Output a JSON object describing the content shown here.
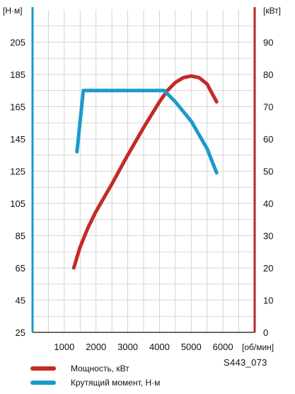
{
  "chart_data": {
    "type": "line",
    "reference_code": "S443_073",
    "left_axis": {
      "unit": "[Н·м]",
      "ticks": [
        25,
        45,
        65,
        85,
        105,
        125,
        145,
        165,
        185,
        205
      ],
      "range": [
        25,
        225
      ],
      "color": "#1a9ac9"
    },
    "right_axis": {
      "unit": "[кВт]",
      "ticks": [
        0,
        10,
        20,
        30,
        40,
        50,
        60,
        70,
        80,
        90
      ],
      "range": [
        0,
        100
      ],
      "color": "#b52a24"
    },
    "x_axis": {
      "unit": "[об/мин]",
      "ticks": [
        1000,
        2000,
        3000,
        4000,
        5000,
        6000
      ],
      "range": [
        0,
        7000
      ]
    },
    "grid": true,
    "series": [
      {
        "name": "Мощность, кВт",
        "axis": "right",
        "color": "#c42a26",
        "x": [
          1300,
          1500,
          1750,
          2000,
          2500,
          3000,
          3500,
          4000,
          4250,
          4500,
          4750,
          5000,
          5250,
          5500,
          5800
        ],
        "y": [
          20,
          26.5,
          32.5,
          37.5,
          46,
          55,
          63.5,
          71.5,
          75,
          77.5,
          79,
          79.5,
          79,
          77,
          71.5
        ]
      },
      {
        "name": "Крутящий момент, Н·м",
        "axis": "left",
        "color": "#1a9ac9",
        "x": [
          1400,
          1600,
          2000,
          3000,
          4000,
          4150,
          4500,
          5000,
          5500,
          5800
        ],
        "y": [
          137,
          175,
          175,
          175,
          175,
          175,
          168,
          156,
          139,
          124
        ]
      }
    ],
    "legend": {
      "placement": "bottom-left",
      "items": [
        {
          "label": "Мощность, кВт",
          "color": "#c42a26"
        },
        {
          "label": "Крутящий момент, Н·м",
          "color": "#1a9ac9"
        }
      ]
    }
  }
}
